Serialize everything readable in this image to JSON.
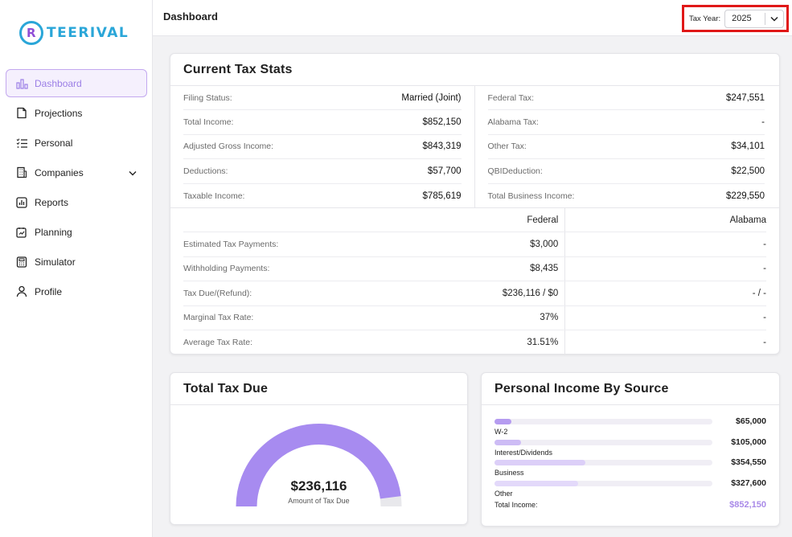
{
  "brand": {
    "name": "TEERIVAL",
    "mark": "R"
  },
  "sidebar": {
    "items": [
      {
        "label": "Dashboard",
        "icon": "bar-chart-icon",
        "active": true
      },
      {
        "label": "Projections",
        "icon": "document-icon"
      },
      {
        "label": "Personal",
        "icon": "checklist-icon"
      },
      {
        "label": "Companies",
        "icon": "building-icon",
        "expandable": true
      },
      {
        "label": "Reports",
        "icon": "report-chart-icon"
      },
      {
        "label": "Planning",
        "icon": "planning-icon"
      },
      {
        "label": "Simulator",
        "icon": "calculator-icon"
      },
      {
        "label": "Profile",
        "icon": "user-icon"
      }
    ]
  },
  "header": {
    "title": "Dashboard",
    "tax_year_label": "Tax Year:",
    "tax_year_value": "2025"
  },
  "current_stats": {
    "title": "Current Tax Stats",
    "left": [
      {
        "label": "Filing Status:",
        "value": "Married (Joint)"
      },
      {
        "label": "Total Income:",
        "value": "$852,150"
      },
      {
        "label": "Adjusted Gross Income:",
        "value": "$843,319"
      },
      {
        "label": "Deductions:",
        "value": "$57,700"
      },
      {
        "label": "Taxable Income:",
        "value": "$785,619"
      }
    ],
    "right": [
      {
        "label": "Federal Tax:",
        "value": "$247,551"
      },
      {
        "label": "Alabama Tax:",
        "value": "-"
      },
      {
        "label": "Other Tax:",
        "value": "$34,101"
      },
      {
        "label": "QBIDeduction:",
        "value": "$22,500"
      },
      {
        "label": "Total Business Income:",
        "value": "$229,550"
      }
    ],
    "table": {
      "headers": [
        "",
        "Federal",
        "Alabama"
      ],
      "rows": [
        {
          "label": "Estimated Tax Payments:",
          "federal": "$3,000",
          "state": "-"
        },
        {
          "label": "Withholding Payments:",
          "federal": "$8,435",
          "state": "-"
        },
        {
          "label": "Tax Due/(Refund):",
          "federal": "$236,116 / $0",
          "state": "- / -"
        },
        {
          "label": "Marginal Tax Rate:",
          "federal": "37%",
          "state": "-"
        },
        {
          "label": "Average Tax Rate:",
          "federal": "31.51%",
          "state": "-"
        }
      ]
    }
  },
  "total_tax_due": {
    "title": "Total Tax Due",
    "amount": "$236,116",
    "caption": "Amount of Tax Due",
    "fill_fraction": 0.96
  },
  "income_by_source": {
    "title": "Personal Income By Source",
    "sources": [
      {
        "name": "W-2",
        "value": "$65,000",
        "fraction": 0.076
      },
      {
        "name": "Interest/Dividends",
        "value": "$105,000",
        "fraction": 0.123
      },
      {
        "name": "Business",
        "value": "$354,550",
        "fraction": 0.416
      },
      {
        "name": "Other",
        "value": "$327,600",
        "fraction": 0.384
      }
    ],
    "total_label": "Total Income:",
    "total_value": "$852,150"
  },
  "colors": {
    "accent": "#a98ae8",
    "gauge_fill": "#a78bf0",
    "gauge_track": "#e8e8ec",
    "highlight_border": "#e01818"
  }
}
